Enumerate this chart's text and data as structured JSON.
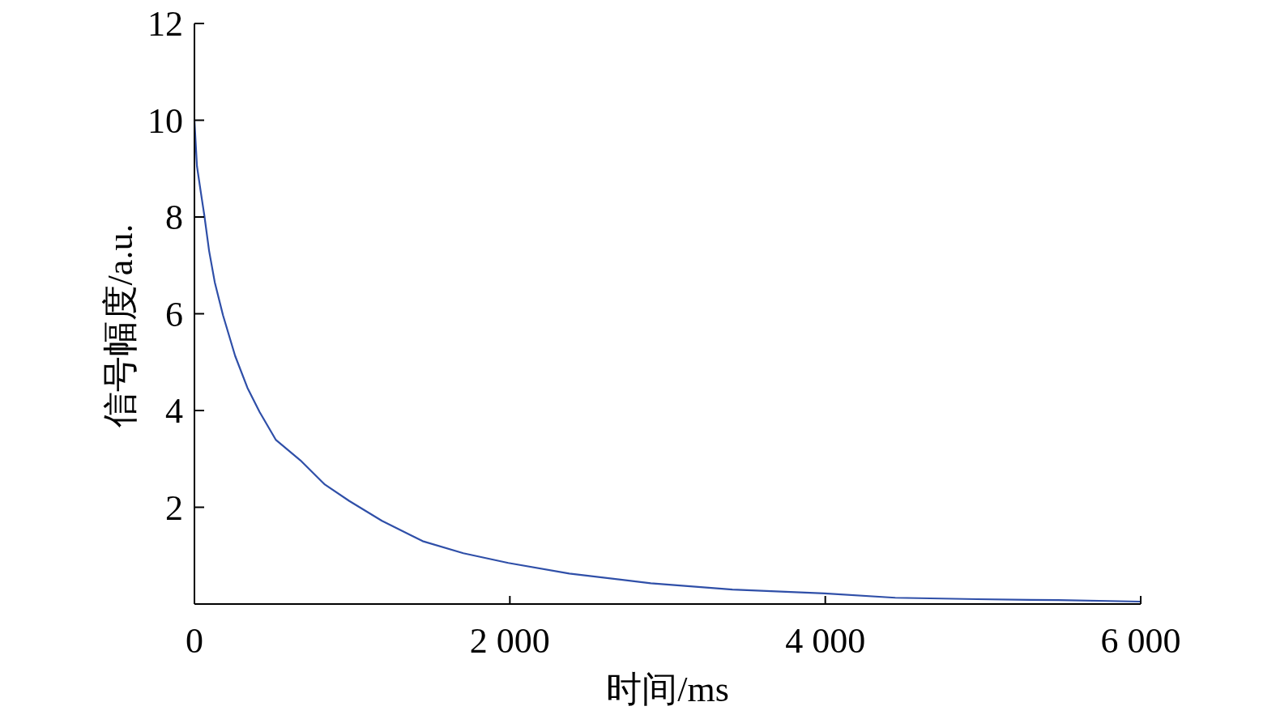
{
  "chart_data": {
    "type": "line",
    "xlabel": "时间/ms",
    "ylabel": "信号幅度/a.u.",
    "xlim": [
      0,
      6000
    ],
    "ylim": [
      0,
      12
    ],
    "xticks": [
      {
        "value": 0,
        "label": "0"
      },
      {
        "value": 2000,
        "label": "2 000"
      },
      {
        "value": 4000,
        "label": "4 000"
      },
      {
        "value": 6000,
        "label": "6 000"
      }
    ],
    "yticks": [
      {
        "value": 0,
        "label": null
      },
      2,
      4,
      6,
      8,
      10,
      12
    ],
    "grid": false,
    "marker": "none",
    "line_style": "solid",
    "series": [
      {
        "color": "#2f4fa8",
        "x": [
          0,
          16,
          41,
          62,
          93,
          129,
          181,
          258,
          336,
          413,
          517,
          672,
          827,
          982,
          1189,
          1447,
          1705,
          1990,
          2377,
          2894,
          3411,
          3995,
          4444,
          4961,
          5478,
          5995
        ],
        "values": [
          10,
          9.05,
          8.5,
          8.05,
          7.3,
          6.65,
          5.97,
          5.13,
          4.47,
          3.97,
          3.39,
          2.97,
          2.47,
          2.13,
          1.72,
          1.3,
          1.05,
          0.85,
          0.63,
          0.43,
          0.3,
          0.22,
          0.13,
          0.1,
          0.08,
          0.05
        ]
      }
    ]
  }
}
